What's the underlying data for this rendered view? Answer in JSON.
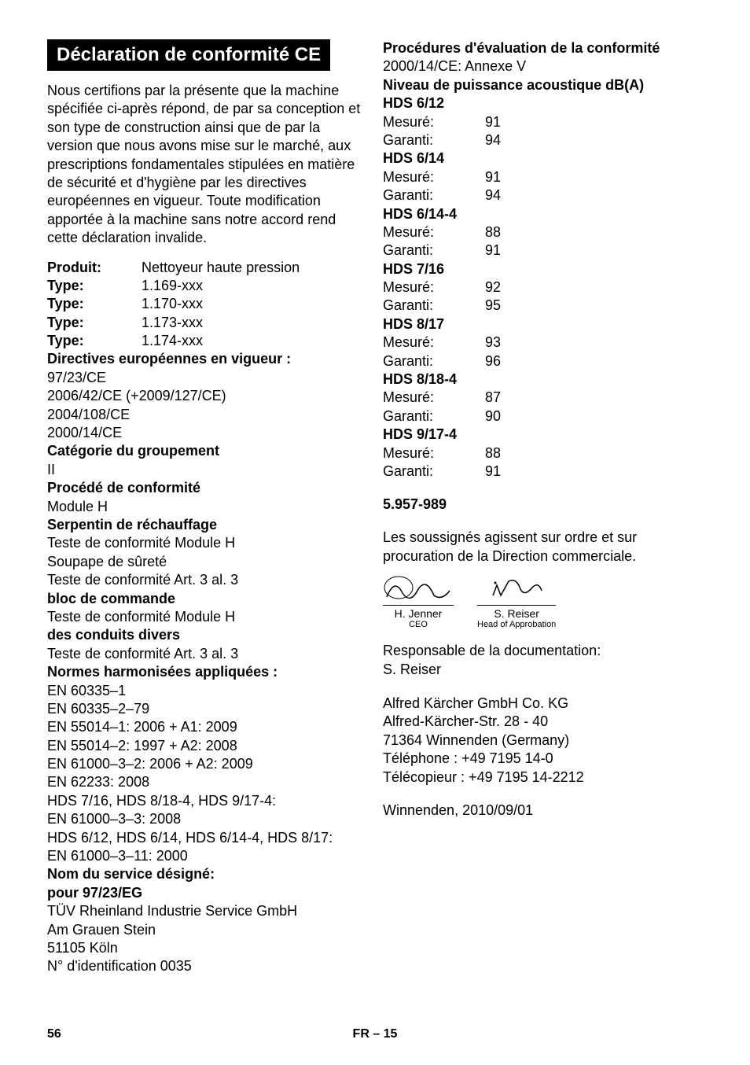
{
  "heading": "Déclaration de conformité CE",
  "intro": "Nous certifions par la présente que la machine spécifiée ci-après répond, de par sa conception et son type de construction ainsi que de par la version que nous avons mise sur le marché, aux prescriptions fondamentales stipulées en matière de sécurité et d'hygiène par les directives européennes en vigueur. Toute modification apportée à la machine sans notre accord rend cette déclaration invalide.",
  "product": {
    "l_prod": "Produit:",
    "v_prod": "Nettoyeur haute pression",
    "l_t1": "Type:",
    "v_t1": "1.169-xxx",
    "l_t2": "Type:",
    "v_t2": "1.170-xxx",
    "l_t3": "Type:",
    "v_t3": "1.173-xxx",
    "l_t4": "Type:",
    "v_t4": "1.174-xxx"
  },
  "directives": {
    "title": "Directives européennes en vigueur :",
    "d1": "97/23/CE",
    "d2": "2006/42/CE (+2009/127/CE)",
    "d3": "2004/108/CE",
    "d4": "2000/14/CE"
  },
  "cat": {
    "title": "Catégorie du groupement",
    "value": "II"
  },
  "proc": {
    "title": "Procédé de conformité",
    "value": "Module H"
  },
  "serp": {
    "title": "Serpentin de réchauffage",
    "l1": "Teste de conformité Module H",
    "l2": "Soupape de sûreté",
    "l3": "Teste de conformité Art. 3 al. 3"
  },
  "bloc": {
    "title": "bloc de commande",
    "l1": "Teste de conformité Module H"
  },
  "cond": {
    "title": "des conduits divers",
    "l1": "Teste de conformité Art. 3 al. 3"
  },
  "normes": {
    "title": "Normes harmonisées appliquées :",
    "n1": "EN 60335–1",
    "n2": "EN 60335–2–79",
    "n3": "EN 55014–1: 2006 + A1: 2009",
    "n4": "EN 55014–2: 1997 + A2: 2008",
    "n5": "EN 61000–3–2: 2006 + A2: 2009",
    "n6": "EN 62233: 2008",
    "n7": "HDS 7/16, HDS 8/18-4, HDS 9/17-4:",
    "n8": "EN 61000–3–3: 2008",
    "n9": "HDS 6/12, HDS 6/14, HDS 6/14-4, HDS 8/17:",
    "n10": "EN 61000–3–11: 2000"
  },
  "service": {
    "title": "Nom du service désigné:",
    "sub": "pour 97/23/EG",
    "l1": "TÜV Rheinland Industrie Service GmbH",
    "l2": "Am Grauen Stein",
    "l3": "51105 Köln",
    "l4": "N° d'identification 0035"
  },
  "right": {
    "eval_title": "Procédures d'évaluation de la conformité",
    "eval_value": "2000/14/CE: Annexe V",
    "sound_title": "Niveau de puissance acoustique dB(A)",
    "models": [
      {
        "name": "HDS 6/12",
        "m": "91",
        "g": "94"
      },
      {
        "name": "HDS 6/14",
        "m": "91",
        "g": "94"
      },
      {
        "name": "HDS 6/14-4",
        "m": "88",
        "g": "91"
      },
      {
        "name": "HDS 7/16",
        "m": "92",
        "g": "95"
      },
      {
        "name": "HDS 8/17",
        "m": "93",
        "g": "96"
      },
      {
        "name": "HDS 8/18-4",
        "m": "87",
        "g": "90"
      },
      {
        "name": "HDS 9/17-4",
        "m": "88",
        "g": "91"
      }
    ],
    "l_mesure": "Mesuré:",
    "l_garanti": "Garanti:",
    "docnum": "5.957-989",
    "sig_text": "Les soussignés agissent sur ordre et sur procuration de la Direction commerciale.",
    "sig1_name": "H. Jenner",
    "sig1_role": "CEO",
    "sig2_name": "S. Reiser",
    "sig2_role": "Head of Approbation",
    "resp1": "Responsable de la documentation:",
    "resp2": "S. Reiser",
    "addr1": "Alfred Kärcher GmbH Co. KG",
    "addr2": "Alfred-Kärcher-Str. 28 - 40",
    "addr3": "71364 Winnenden (Germany)",
    "addr4": "Téléphone : +49 7195 14-0",
    "addr5": "Télécopieur : +49 7195 14-2212",
    "date": "Winnenden, 2010/09/01"
  },
  "footer": {
    "page": "56",
    "center": "FR – 15"
  }
}
